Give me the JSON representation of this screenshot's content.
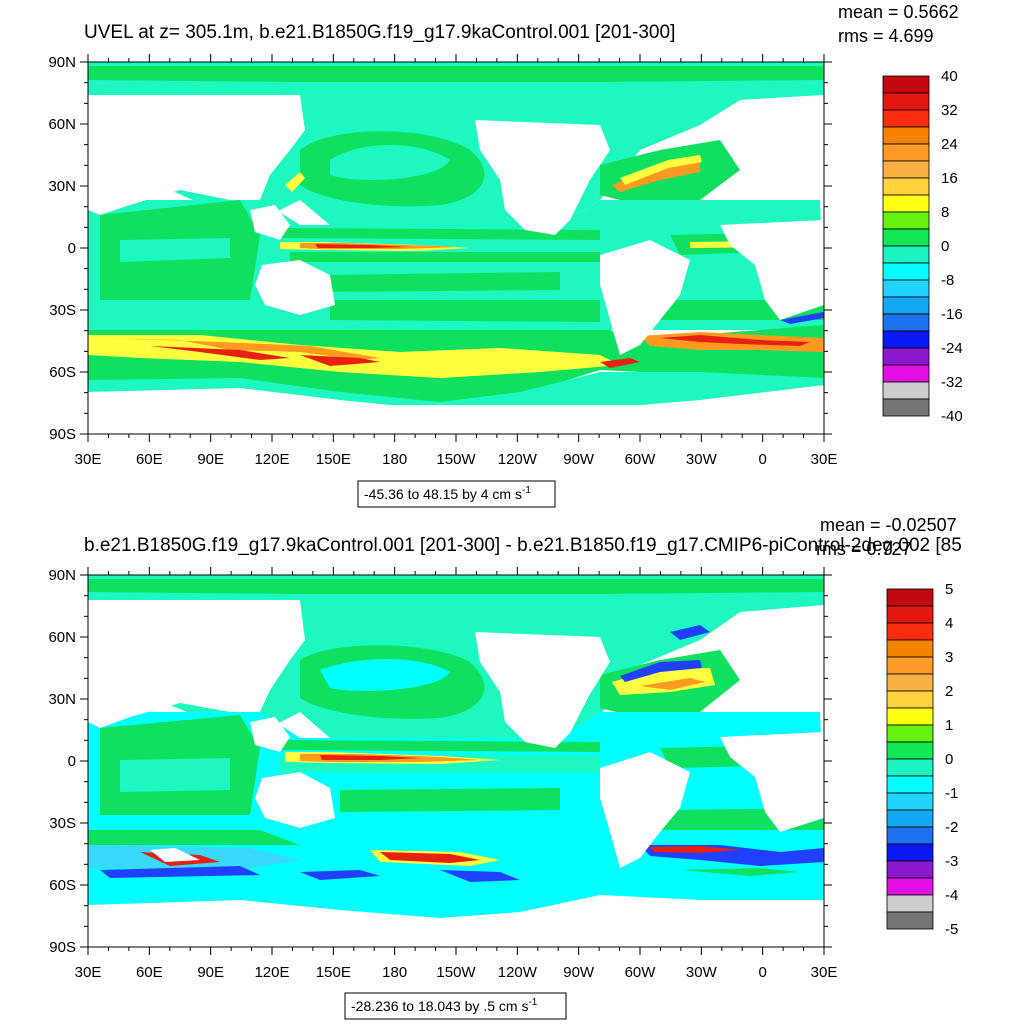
{
  "chart_data": [
    {
      "type": "heatmap",
      "title": "UVEL at z= 305.1m, b.e21.B1850G.f19_g17.9kaControl.001 [201-300]",
      "stats": [
        "mean = 0.5662",
        "rms = 4.699"
      ],
      "x_ticks": [
        "30E",
        "60E",
        "90E",
        "120E",
        "150E",
        "180",
        "150W",
        "120W",
        "90W",
        "60W",
        "30W",
        "0",
        "30E"
      ],
      "y_ticks": [
        "90N",
        "60N",
        "30N",
        "0",
        "30S",
        "60S",
        "90S"
      ],
      "colorbar_labels": [
        "40",
        "32",
        "24",
        "16",
        "8",
        "0",
        "-8",
        "-16",
        "-24",
        "-32",
        "-40"
      ],
      "info_text": "-45.36 to 48.15 by 4 cm s",
      "info_sup": "-1"
    },
    {
      "type": "heatmap",
      "title": "b.e21.B1850G.f19_g17.9kaControl.001 [201-300] - b.e21.B1850.f19_g17.CMIP6-piControl-2deg.002 [85",
      "stats": [
        "mean = -0.02507",
        "rms = 0.727"
      ],
      "x_ticks": [
        "30E",
        "60E",
        "90E",
        "120E",
        "150E",
        "180",
        "150W",
        "120W",
        "90W",
        "60W",
        "30W",
        "0",
        "30E"
      ],
      "y_ticks": [
        "90N",
        "60N",
        "30N",
        "0",
        "30S",
        "60S",
        "90S"
      ],
      "colorbar_labels": [
        "5",
        "4",
        "3",
        "2",
        "1",
        "0",
        "-1",
        "-2",
        "-3",
        "-4",
        "-5"
      ],
      "info_text": "-28.236 to 18.043 by .5 cm s",
      "info_sup": "-1"
    }
  ],
  "colors": {
    "ocean_base": "#1ef7c0",
    "green": "#10e060",
    "cyan": "#00ffff",
    "lightblue": "#38d8ff",
    "yellow": "#ffff40",
    "orange": "#ff9a20",
    "red": "#e82010",
    "darkred": "#a00010",
    "blue": "#2040ff",
    "land": "#ffffff"
  },
  "colorbar_colors": [
    "#c4080f",
    "#e21710",
    "#fb2d0f",
    "#f38300",
    "#fb9a26",
    "#fbb044",
    "#ffd23e",
    "#ffff14",
    "#66f20f",
    "#12e853",
    "#1bf3c2",
    "#00ffff",
    "#22d3ff",
    "#13a8f3",
    "#1e72f0",
    "#0a18f5",
    "#8b18cc",
    "#e30fe3",
    "#cdcdcd",
    "#757575"
  ]
}
